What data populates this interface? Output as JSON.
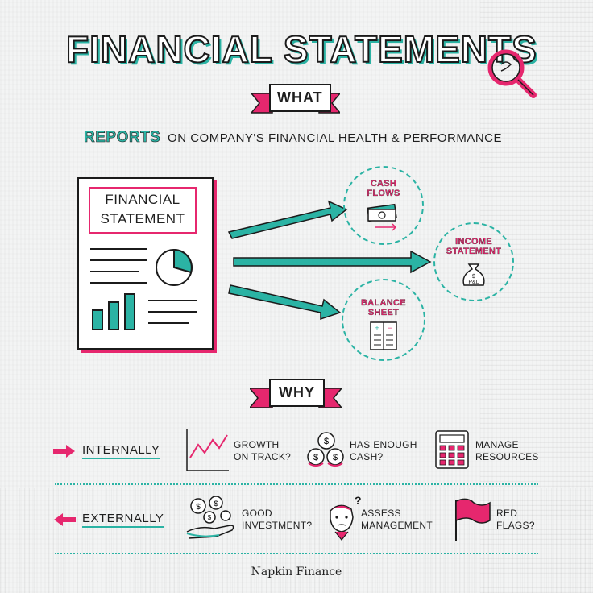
{
  "title": "FINANCIAL STATEMENTS",
  "what_label": "WHAT",
  "reports": {
    "emphasis": "REPORTS",
    "rest": "ON COMPANY'S FINANCIAL HEALTH & PERFORMANCE"
  },
  "document": {
    "title_line1": "FINANCIAL",
    "title_line2": "STATEMENT"
  },
  "outputs": [
    {
      "label_line1": "CASH",
      "label_line2": "FLOWS",
      "icon": "cash-icon"
    },
    {
      "label_line1": "INCOME",
      "label_line2": "STATEMENT",
      "icon": "money-bag-icon",
      "icon_text": "$ P&L"
    },
    {
      "label_line1": "BALANCE",
      "label_line2": "SHEET",
      "icon": "ledger-icon"
    }
  ],
  "why_label": "WHY",
  "internally": {
    "label": "INTERNALLY",
    "items": [
      {
        "line1": "GROWTH",
        "line2": "ON TRACK?",
        "icon": "growth-chart-icon"
      },
      {
        "line1": "HAS ENOUGH",
        "line2": "CASH?",
        "icon": "coins-icon"
      },
      {
        "line1": "MANAGE",
        "line2": "RESOURCES",
        "icon": "calculator-icon"
      }
    ]
  },
  "externally": {
    "label": "EXTERNALLY",
    "items": [
      {
        "line1": "GOOD",
        "line2": "INVESTMENT?",
        "icon": "hand-coins-icon"
      },
      {
        "line1": "ASSESS",
        "line2": "MANAGEMENT",
        "icon": "manager-face-icon"
      },
      {
        "line1": "RED",
        "line2": "FLAGS?",
        "icon": "red-flag-icon"
      }
    ]
  },
  "brand": "Napkin Finance",
  "colors": {
    "teal": "#2bb3a4",
    "pink": "#e6276e",
    "ink": "#1b1b1b"
  }
}
